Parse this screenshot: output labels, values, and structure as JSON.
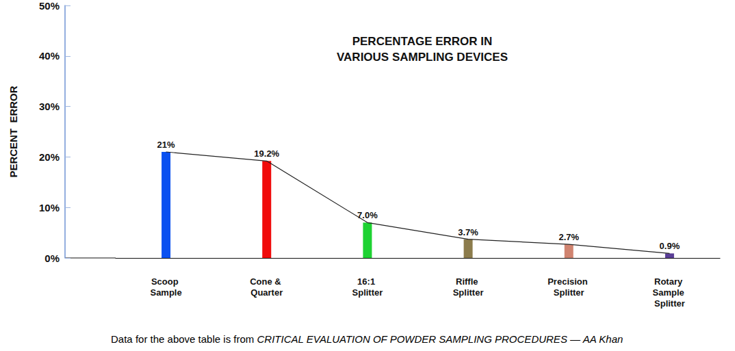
{
  "chart_data": {
    "type": "bar",
    "title": "PERCENTAGE ERROR IN\nVARIOUS SAMPLING DEVICES",
    "y_label": "PERCENT  ERROR",
    "categories": [
      "Scoop Sample",
      "Cone & Quarter",
      "16:1 Splitter",
      "Riffle Splitter",
      "Precision Splitter",
      "Rotary Sample Splitter"
    ],
    "series": [
      {
        "type": "bar",
        "values": [
          21,
          19.2,
          7.0,
          3.7,
          2.7,
          0.9
        ],
        "value_labels": [
          "21%",
          "19.2%",
          "7.0%",
          "3.7%",
          "2.7%",
          "0.9%"
        ],
        "colors": [
          "#0a50f0",
          "#f00a0a",
          "#1ed232",
          "#8c7c4c",
          "#d08470",
          "#5a3e96"
        ]
      },
      {
        "type": "line",
        "values": [
          21,
          19.2,
          7.0,
          3.7,
          2.7,
          0.9
        ],
        "color": "#222222",
        "line_style": "solid"
      }
    ],
    "ylim": [
      0,
      50
    ],
    "yticks": [
      {
        "value": 0,
        "label": "0%"
      },
      {
        "value": 10,
        "label": "10%"
      },
      {
        "value": 20,
        "label": "20%"
      },
      {
        "value": 30,
        "label": "30%"
      },
      {
        "value": 40,
        "label": "40%"
      },
      {
        "value": 50,
        "label": "50%"
      }
    ],
    "grid": false,
    "data_labels": true,
    "caption": {
      "text": "Data for the above table is from",
      "citation": "CRITICAL EVALUATION OF POWDER SAMPLING PROCEDURES — AA Khan"
    }
  }
}
